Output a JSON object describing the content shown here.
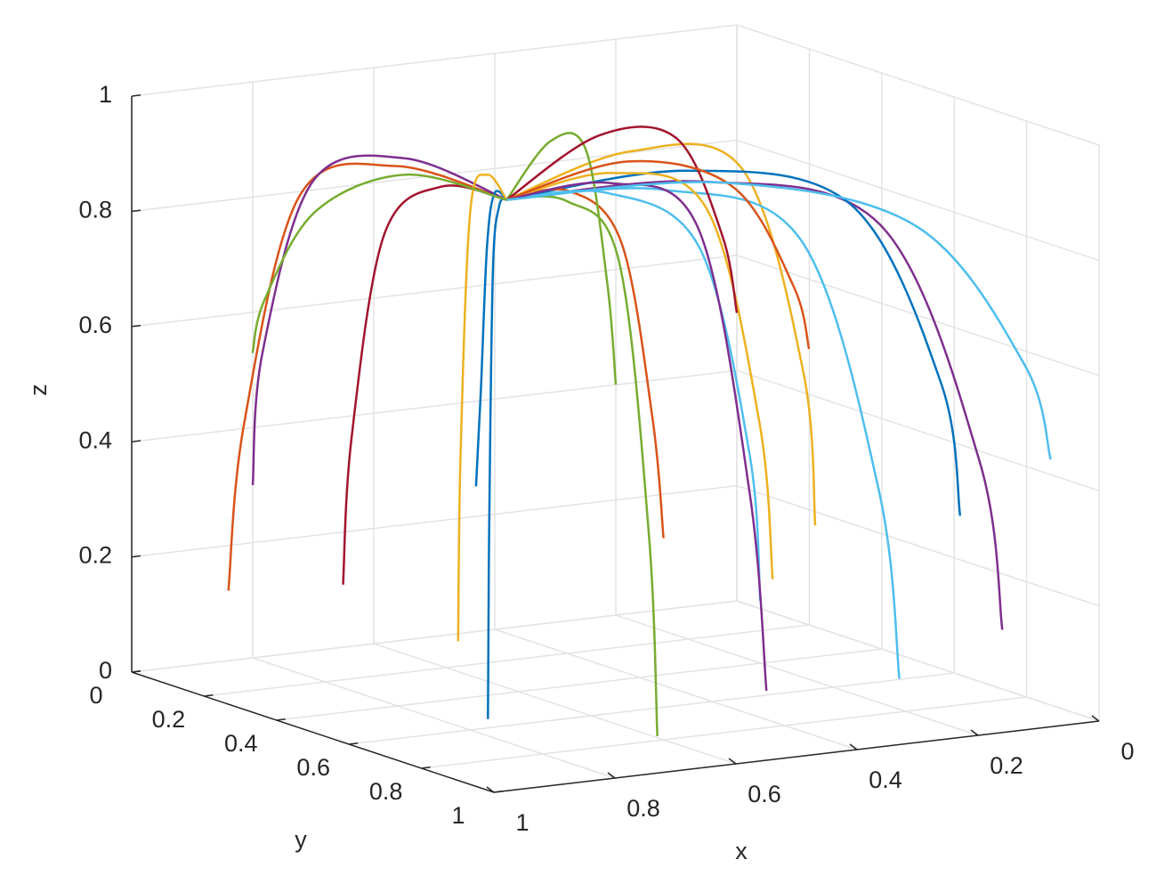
{
  "chart_data": {
    "type": "line3d",
    "xlabel": "x",
    "ylabel": "y",
    "zlabel": "z",
    "xlim": [
      0,
      1
    ],
    "ylim": [
      0,
      1
    ],
    "zlim": [
      0,
      1
    ],
    "xticks": [
      0,
      0.2,
      0.4,
      0.6,
      0.8,
      1
    ],
    "yticks": [
      0,
      0.2,
      0.4,
      0.6,
      0.8,
      1
    ],
    "zticks": [
      0,
      0.2,
      0.4,
      0.6,
      0.8,
      1
    ],
    "grid": true,
    "series": [
      {
        "color": "#0072BD",
        "x": [
          0.5,
          0.68,
          0.84,
          0.93,
          0.95
        ],
        "y": [
          0.2,
          0.48,
          0.73,
          0.87,
          0.9
        ],
        "z": [
          0.8,
          0.87,
          0.83,
          0.42,
          0.1
        ]
      },
      {
        "color": "#D95319",
        "x": [
          0.5,
          0.66,
          0.8,
          0.88,
          0.9
        ],
        "y": [
          0.2,
          0.16,
          0.13,
          0.11,
          0.1
        ],
        "z": [
          0.8,
          0.87,
          0.83,
          0.44,
          0.15
        ]
      },
      {
        "color": "#EDB120",
        "x": [
          0.5,
          0.32,
          0.16,
          0.07,
          0.05
        ],
        "y": [
          0.2,
          0.24,
          0.28,
          0.3,
          0.3
        ],
        "z": [
          0.8,
          0.87,
          0.83,
          0.47,
          0.2
        ]
      },
      {
        "color": "#7E2F8E",
        "x": [
          0.5,
          0.34,
          0.2,
          0.12,
          0.1
        ],
        "y": [
          0.2,
          0.48,
          0.73,
          0.87,
          0.9
        ],
        "z": [
          0.8,
          0.87,
          0.83,
          0.44,
          0.15
        ]
      },
      {
        "color": "#77AC30",
        "x": [
          0.5,
          0.58,
          0.65,
          0.69,
          0.7
        ],
        "y": [
          0.2,
          0.5,
          0.76,
          0.91,
          0.95
        ],
        "z": [
          0.8,
          0.87,
          0.83,
          0.39,
          0.05
        ]
      },
      {
        "color": "#4DBEEE",
        "x": [
          0.5,
          0.42,
          0.35,
          0.31,
          0.3
        ],
        "y": [
          0.2,
          0.5,
          0.76,
          0.91,
          0.95
        ],
        "z": [
          0.8,
          0.87,
          0.83,
          0.42,
          0.1
        ]
      },
      {
        "color": "#A2142F",
        "x": [
          0.5,
          0.68,
          0.84,
          0.93,
          0.95
        ],
        "y": [
          0.2,
          0.32,
          0.43,
          0.49,
          0.5
        ],
        "z": [
          0.8,
          0.87,
          0.83,
          0.5,
          0.25
        ]
      },
      {
        "color": "#0072BD",
        "x": [
          0.5,
          0.32,
          0.16,
          0.07,
          0.05
        ],
        "y": [
          0.2,
          0.4,
          0.58,
          0.68,
          0.7
        ],
        "z": [
          0.8,
          0.87,
          0.83,
          0.53,
          0.3
        ]
      },
      {
        "color": "#D95319",
        "x": [
          0.5,
          0.54,
          0.58,
          0.6,
          0.6
        ],
        "y": [
          0.2,
          0.44,
          0.65,
          0.77,
          0.8
        ],
        "z": [
          0.8,
          0.87,
          0.83,
          0.55,
          0.35
        ]
      },
      {
        "color": "#EDB120",
        "x": [
          0.5,
          0.42,
          0.35,
          0.31,
          0.3
        ],
        "y": [
          0.2,
          0.36,
          0.5,
          0.58,
          0.6
        ],
        "z": [
          0.8,
          0.87,
          0.83,
          0.47,
          0.2
        ]
      },
      {
        "color": "#7E2F8E",
        "x": [
          0.5,
          0.62,
          0.73,
          0.79,
          0.8
        ],
        "y": [
          0.2,
          0.12,
          0.05,
          0.01,
          0
        ],
        "z": [
          0.8,
          0.87,
          0.83,
          0.53,
          0.3
        ]
      },
      {
        "color": "#77AC30",
        "x": [
          0.5,
          0.38,
          0.28,
          0.22,
          0.2
        ],
        "y": [
          0.2,
          0.12,
          0.05,
          0.01,
          0
        ],
        "z": [
          0.8,
          0.87,
          0.83,
          0.58,
          0.4
        ]
      },
      {
        "color": "#4DBEEE",
        "x": [
          0.5,
          0.5,
          0.5,
          0.5,
          0.5
        ],
        "y": [
          0.2,
          0.48,
          0.73,
          0.87,
          0.9
        ],
        "z": [
          0.8,
          0.87,
          0.83,
          0.5,
          0.25
        ]
      },
      {
        "color": "#A2142F",
        "x": [
          0.5,
          0.3,
          0.13,
          0.03,
          0
        ],
        "y": [
          0.2,
          0.12,
          0.05,
          0.01,
          0
        ],
        "z": [
          0.8,
          0.87,
          0.83,
          0.64,
          0.5
        ]
      },
      {
        "color": "#0072BD",
        "x": [
          0.5,
          0.64,
          0.76,
          0.83,
          0.85
        ],
        "y": [
          0.2,
          0.4,
          0.58,
          0.68,
          0.7
        ],
        "z": [
          0.8,
          0.87,
          0.83,
          0.61,
          0.45
        ]
      },
      {
        "color": "#D95319",
        "x": [
          0.5,
          0.36,
          0.24,
          0.17,
          0.15
        ],
        "y": [
          0.2,
          0.3,
          0.39,
          0.44,
          0.45
        ],
        "z": [
          0.8,
          0.87,
          0.83,
          0.66,
          0.55
        ]
      },
      {
        "color": "#EDB120",
        "x": [
          0.5,
          0.58,
          0.65,
          0.69,
          0.7
        ],
        "y": [
          0.2,
          0.28,
          0.35,
          0.39,
          0.4
        ],
        "z": [
          0.8,
          0.87,
          0.83,
          0.42,
          0.1
        ]
      },
      {
        "color": "#7E2F8E",
        "x": [
          0.5,
          0.46,
          0.43,
          0.41,
          0.4
        ],
        "y": [
          0.2,
          0.42,
          0.61,
          0.72,
          0.75
        ],
        "z": [
          0.8,
          0.87,
          0.83,
          0.39,
          0.05
        ]
      },
      {
        "color": "#77AC30",
        "x": [
          0.5,
          0.68,
          0.84,
          0.93,
          0.95
        ],
        "y": [
          0.2,
          0.22,
          0.24,
          0.25,
          0.25
        ],
        "z": [
          0.8,
          0.87,
          0.83,
          0.69,
          0.6
        ]
      },
      {
        "color": "#4DBEEE",
        "x": [
          0.5,
          0.32,
          0.16,
          0.07,
          0.05
        ],
        "y": [
          0.2,
          0.5,
          0.76,
          0.91,
          0.95
        ],
        "z": [
          0.8,
          0.87,
          0.83,
          0.61,
          0.45
        ]
      }
    ]
  }
}
